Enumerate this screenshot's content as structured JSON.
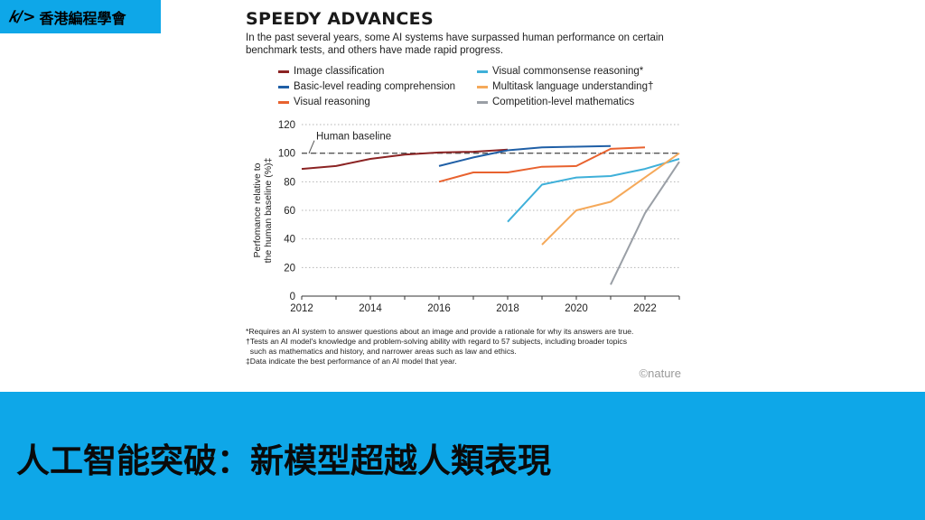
{
  "header": {
    "logo_mark": "𝑘/>",
    "logo_text": "香港編程學會",
    "logo_color": "#0ea7e8"
  },
  "figure": {
    "title": "SPEEDY ADVANCES",
    "subtitle": "In the past several years, some AI systems have surpassed human performance on certain benchmark tests, and others have made rapid progress.",
    "footnotes": [
      "*Requires an AI system to answer questions about an image and provide a rationale for why its answers are true.",
      "†Tests an AI model's knowledge and problem-solving ability with regard to 57 subjects, including broader topics\n  such as mathematics and history, and narrower areas such as law and ethics.",
      "‡Data indicate the best performance of an AI model that year."
    ],
    "credit": "©nature"
  },
  "chart_data": {
    "type": "line",
    "title": "SPEEDY ADVANCES",
    "ylabel": "Perfomance relative to the human baseline (%)‡",
    "xlabel": "",
    "xlim": [
      2012,
      2023
    ],
    "ylim": [
      0,
      120
    ],
    "xticks": [
      2012,
      2014,
      2016,
      2018,
      2020,
      2022
    ],
    "yticks": [
      0,
      20,
      40,
      60,
      80,
      100,
      120
    ],
    "grid": "horizontal dotted",
    "legend_position": "top, two columns",
    "baseline": {
      "value": 100,
      "label": "Human baseline"
    },
    "series": [
      {
        "name": "Image classification",
        "color": "#8b2323",
        "x": [
          2012,
          2013,
          2014,
          2015,
          2016,
          2017,
          2018
        ],
        "y": [
          89,
          91,
          96,
          99,
          100.5,
          101,
          102.5
        ]
      },
      {
        "name": "Basic-level reading comprehension",
        "color": "#1f5fa6",
        "x": [
          2016,
          2017,
          2018,
          2019,
          2020,
          2021
        ],
        "y": [
          91,
          97,
          102,
          104,
          104.5,
          105
        ]
      },
      {
        "name": "Visual reasoning",
        "color": "#e8622f",
        "x": [
          2016,
          2017,
          2018,
          2019,
          2020,
          2021,
          2022
        ],
        "y": [
          80,
          86.5,
          86.5,
          90.5,
          91,
          103,
          104
        ]
      },
      {
        "name": "Visual commonsense reasoning*",
        "color": "#3fb0d9",
        "x": [
          2018,
          2019,
          2020,
          2021,
          2022,
          2023
        ],
        "y": [
          52,
          78,
          83,
          84,
          89,
          96
        ]
      },
      {
        "name": "Multitask language understanding†",
        "color": "#f5a95a",
        "x": [
          2019,
          2020,
          2021,
          2022,
          2023
        ],
        "y": [
          36,
          60,
          66,
          83,
          100
        ]
      },
      {
        "name": "Competition-level mathematics",
        "color": "#9a9fa6",
        "x": [
          2021,
          2022,
          2023
        ],
        "y": [
          8,
          58,
          94
        ]
      }
    ]
  },
  "banner": {
    "text": "人工智能突破：新模型超越人類表現",
    "color": "#0ea7e8"
  }
}
